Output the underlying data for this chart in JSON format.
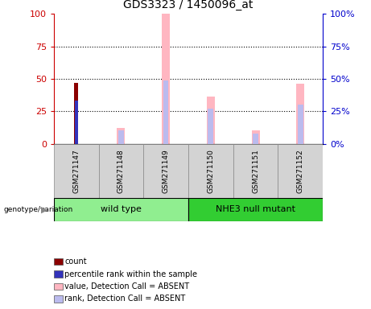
{
  "title": "GDS3323 / 1450096_at",
  "samples": [
    "GSM271147",
    "GSM271148",
    "GSM271149",
    "GSM271150",
    "GSM271151",
    "GSM271152"
  ],
  "groups": [
    {
      "label": "wild type",
      "color": "#90EE90",
      "samples": [
        0,
        1,
        2
      ]
    },
    {
      "label": "NHE3 null mutant",
      "color": "#32CD32",
      "samples": [
        3,
        4,
        5
      ]
    }
  ],
  "count_values": [
    47,
    0,
    0,
    0,
    0,
    0
  ],
  "percentile_values": [
    33,
    0,
    0,
    0,
    0,
    0
  ],
  "absent_value_bars": [
    0,
    12,
    100,
    36,
    10,
    46
  ],
  "absent_rank_bars": [
    0,
    10,
    49,
    27,
    8,
    30
  ],
  "count_color": "#8B0000",
  "percentile_color": "#3333BB",
  "absent_value_color": "#FFB6C1",
  "absent_rank_color": "#BBBBEE",
  "ylim": [
    0,
    100
  ],
  "yticks": [
    0,
    25,
    50,
    75,
    100
  ],
  "ytick_labels": [
    "0",
    "25",
    "50",
    "75",
    "100"
  ],
  "grid_lines": [
    25,
    50,
    75
  ],
  "left_axis_color": "#CC0000",
  "right_axis_color": "#0000CC",
  "background_color": "#FFFFFF",
  "legend_items": [
    {
      "label": "count",
      "color": "#8B0000"
    },
    {
      "label": "percentile rank within the sample",
      "color": "#3333BB"
    },
    {
      "label": "value, Detection Call = ABSENT",
      "color": "#FFB6C1"
    },
    {
      "label": "rank, Detection Call = ABSENT",
      "color": "#BBBBEE"
    }
  ]
}
